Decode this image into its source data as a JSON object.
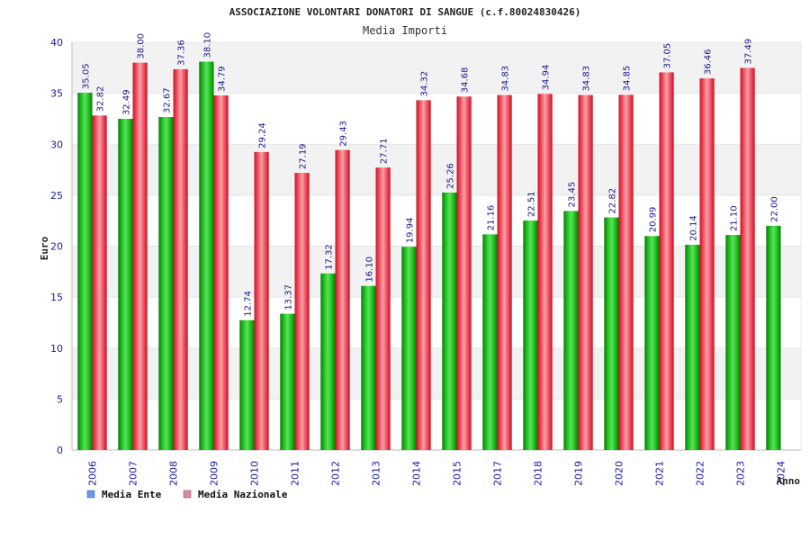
{
  "chart_data": {
    "type": "bar",
    "title": "ASSOCIAZIONE VOLONTARI DONATORI DI SANGUE (c.f.80024830426)",
    "subtitle": "Media Importi",
    "ylabel": "Euro",
    "xlabel": "Anno",
    "ylim": [
      0,
      40
    ],
    "yticks": [
      0,
      5,
      10,
      15,
      20,
      25,
      30,
      35,
      40
    ],
    "grid": "horizontal bands",
    "legend_position": "bottom-left",
    "categories": [
      "2006",
      "2007",
      "2008",
      "2009",
      "2010",
      "2011",
      "2012",
      "2013",
      "2014",
      "2015",
      "2017",
      "2018",
      "2019",
      "2020",
      "2021",
      "2022",
      "2023",
      "2024"
    ],
    "series": [
      {
        "name": "Media Ente",
        "legend_color": "#6699ee",
        "bar_color": "#1faa1f",
        "values": [
          35.05,
          32.49,
          32.67,
          38.1,
          12.74,
          13.37,
          17.32,
          16.1,
          19.94,
          25.26,
          21.16,
          22.51,
          23.45,
          22.82,
          20.99,
          20.14,
          21.1,
          22.0
        ],
        "labels": [
          "35.05",
          "32.49",
          "32.67",
          "38.10",
          "12.74",
          "13.37",
          "17.32",
          "16.10",
          "19.94",
          "25.26",
          "21.16",
          "22.51",
          "23.45",
          "22.82",
          "20.99",
          "20.14",
          "21.10",
          "22.00"
        ]
      },
      {
        "name": "Media Nazionale",
        "legend_color": "#dd88aa",
        "bar_color": "#e82030",
        "values": [
          32.82,
          38.0,
          37.36,
          34.79,
          29.24,
          27.19,
          29.43,
          27.71,
          34.32,
          34.68,
          34.83,
          34.94,
          34.83,
          34.85,
          37.05,
          36.46,
          37.49,
          null
        ],
        "labels": [
          "32.82",
          "38.00",
          "37.36",
          "34.79",
          "29.24",
          "27.19",
          "29.43",
          "27.71",
          "34.32",
          "34.68",
          "34.83",
          "34.94",
          "34.83",
          "34.85",
          "37.05",
          "36.46",
          "37.49",
          ""
        ]
      }
    ]
  }
}
